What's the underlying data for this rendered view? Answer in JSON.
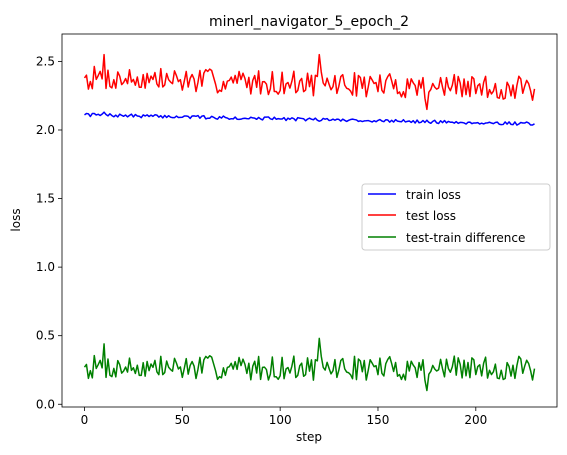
{
  "chart_data": {
    "type": "line",
    "title": "minerl_navigator_5_epoch_2",
    "xlabel": "step",
    "ylabel": "loss",
    "xlim": [
      -11.5,
      241.5
    ],
    "ylim": [
      -0.02,
      2.7
    ],
    "xticks": [
      0,
      50,
      100,
      150,
      200
    ],
    "yticks": [
      0.0,
      0.5,
      1.0,
      1.5,
      2.0,
      2.5
    ],
    "xtick_labels": [
      "0",
      "50",
      "100",
      "150",
      "200"
    ],
    "ytick_labels": [
      "0.0",
      "0.5",
      "1.0",
      "1.5",
      "2.0",
      "2.5"
    ],
    "legend_position": "center-right",
    "series": [
      {
        "name": "train loss",
        "color": "#0000ff",
        "start": 2.11,
        "end": 2.045,
        "noise": 0.012,
        "anchors": [
          [
            0,
            2.11
          ],
          [
            5,
            2.12
          ],
          [
            10,
            2.13
          ],
          [
            30,
            2.11
          ],
          [
            100,
            2.08
          ],
          [
            150,
            2.07
          ],
          [
            230,
            2.045
          ]
        ]
      },
      {
        "name": "test loss",
        "color": "#ff0000",
        "start": 2.38,
        "end": 2.3,
        "noise": 0.09,
        "anchors": [
          [
            0,
            2.38
          ],
          [
            10,
            2.55
          ],
          [
            120,
            2.55
          ],
          [
            175,
            2.15
          ],
          [
            230,
            2.3
          ]
        ]
      },
      {
        "name": "test-train difference",
        "color": "#008000",
        "start": 0.27,
        "end": 0.26,
        "noise": 0.09,
        "anchors": [
          [
            0,
            0.27
          ],
          [
            10,
            0.44
          ],
          [
            120,
            0.48
          ],
          [
            175,
            0.1
          ],
          [
            230,
            0.26
          ]
        ]
      }
    ],
    "n_points": 231
  }
}
